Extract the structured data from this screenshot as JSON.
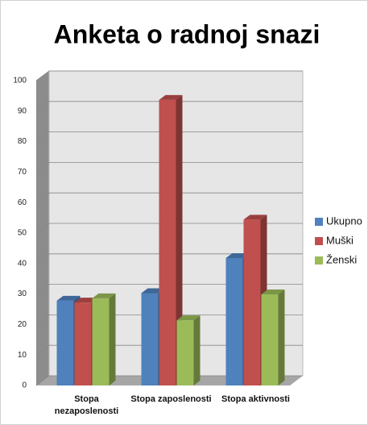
{
  "chart_data": {
    "type": "bar3d",
    "title": "Anketa o radnoj snazi",
    "categories": [
      "Stopa nezaposlenosti",
      "Stopa zaposlenosti",
      "Stopa aktivnosti"
    ],
    "series": [
      {
        "name": "Ukupno",
        "color": "#4f81bd",
        "values": [
          27.8,
          30.3,
          41.8
        ]
      },
      {
        "name": "Muški",
        "color": "#c0504d",
        "values": [
          27.2,
          93.7,
          54.4
        ]
      },
      {
        "name": "Ženski",
        "color": "#9bbb59",
        "values": [
          28.6,
          21.4,
          29.9
        ]
      }
    ],
    "ylim": [
      0,
      100
    ],
    "yticks": [
      0,
      10,
      20,
      30,
      40,
      50,
      60,
      70,
      80,
      90,
      100
    ],
    "grid": true,
    "legend": "right"
  }
}
